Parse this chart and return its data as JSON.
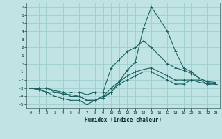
{
  "xlabel": "Humidex (Indice chaleur)",
  "bg_color": "#c0e4e4",
  "grid_color": "#9ecece",
  "line_color": "#1a6060",
  "xlim": [
    -0.5,
    23.5
  ],
  "ylim": [
    -5.5,
    7.5
  ],
  "xticks": [
    0,
    1,
    2,
    3,
    4,
    5,
    6,
    7,
    8,
    9,
    10,
    11,
    12,
    13,
    14,
    15,
    16,
    17,
    18,
    19,
    20,
    21,
    22,
    23
  ],
  "yticks": [
    -5,
    -4,
    -3,
    -2,
    -1,
    0,
    1,
    2,
    3,
    4,
    5,
    6,
    7
  ],
  "series": [
    [
      -3,
      -3.1,
      -3.5,
      -4.0,
      -4.3,
      -4.5,
      -4.5,
      -5.0,
      -4.5,
      -4.2,
      -3.5,
      -2.2,
      -0.8,
      0.2,
      4.3,
      7.0,
      5.5,
      4.0,
      1.5,
      -0.5,
      -1.0,
      -1.8,
      -2.3,
      -2.5
    ],
    [
      -3,
      -3.0,
      -3.0,
      -3.3,
      -3.5,
      -3.5,
      -3.5,
      -3.8,
      -3.5,
      -3.5,
      -0.5,
      0.5,
      1.5,
      2.0,
      2.8,
      2.0,
      1.0,
      0.0,
      -0.5,
      -0.8,
      -1.2,
      -1.8,
      -2.2,
      -2.3
    ],
    [
      -3,
      -3.2,
      -3.5,
      -3.5,
      -3.7,
      -3.8,
      -4.0,
      -4.5,
      -4.5,
      -4.0,
      -3.0,
      -2.2,
      -1.5,
      -1.0,
      -0.7,
      -0.5,
      -1.0,
      -1.5,
      -2.0,
      -2.0,
      -2.0,
      -2.3,
      -2.5,
      -2.5
    ],
    [
      -3,
      -3.0,
      -3.0,
      -3.5,
      -3.5,
      -4.0,
      -4.0,
      -4.5,
      -4.5,
      -4.0,
      -3.5,
      -2.5,
      -2.0,
      -1.5,
      -1.0,
      -1.0,
      -1.5,
      -2.0,
      -2.5,
      -2.5,
      -2.0,
      -2.0,
      -2.5,
      -2.5
    ]
  ]
}
